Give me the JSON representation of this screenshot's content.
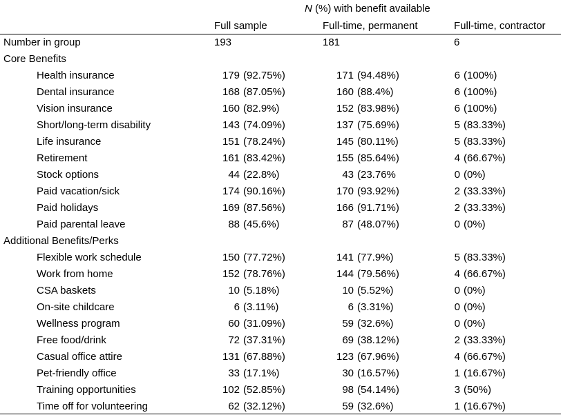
{
  "header": {
    "super_n": "N",
    "super_rest": " (%) with benefit available",
    "columns": [
      "Full sample",
      "Full-time, permanent",
      "Full-time, contractor"
    ]
  },
  "group_row": {
    "label": "Number in group",
    "full": "193",
    "perm": "181",
    "contr": "6"
  },
  "sections": [
    {
      "title": "Core Benefits",
      "rows": [
        {
          "label": "Health insurance",
          "full": [
            "179",
            "(92.75%)"
          ],
          "perm": [
            "171",
            "(94.48%)"
          ],
          "contr": [
            "6",
            "(100%)"
          ]
        },
        {
          "label": "Dental insurance",
          "full": [
            "168",
            "(87.05%)"
          ],
          "perm": [
            "160",
            "(88.4%)"
          ],
          "contr": [
            "6",
            "(100%)"
          ]
        },
        {
          "label": "Vision insurance",
          "full": [
            "160",
            "(82.9%)"
          ],
          "perm": [
            "152",
            "(83.98%)"
          ],
          "contr": [
            "6",
            "(100%)"
          ]
        },
        {
          "label": "Short/long-term disability",
          "full": [
            "143",
            "(74.09%)"
          ],
          "perm": [
            "137",
            "(75.69%)"
          ],
          "contr": [
            "5",
            "(83.33%)"
          ]
        },
        {
          "label": "Life insurance",
          "full": [
            "151",
            "(78.24%)"
          ],
          "perm": [
            "145",
            "(80.11%)"
          ],
          "contr": [
            "5",
            "(83.33%)"
          ]
        },
        {
          "label": "Retirement",
          "full": [
            "161",
            "(83.42%)"
          ],
          "perm": [
            "155",
            "(85.64%)"
          ],
          "contr": [
            "4",
            "(66.67%)"
          ]
        },
        {
          "label": "Stock options",
          "full": [
            "44",
            "(22.8%)"
          ],
          "perm": [
            "43",
            "(23.76%"
          ],
          "contr": [
            "0",
            "(0%)"
          ]
        },
        {
          "label": "Paid vacation/sick",
          "full": [
            "174",
            "(90.16%)"
          ],
          "perm": [
            "170",
            "(93.92%)"
          ],
          "contr": [
            "2",
            "(33.33%)"
          ]
        },
        {
          "label": "Paid holidays",
          "full": [
            "169",
            "(87.56%)"
          ],
          "perm": [
            "166",
            "(91.71%)"
          ],
          "contr": [
            "2",
            "(33.33%)"
          ]
        },
        {
          "label": "Paid parental leave",
          "full": [
            "88",
            "(45.6%)"
          ],
          "perm": [
            "87",
            "(48.07%)"
          ],
          "contr": [
            "0",
            "(0%)"
          ]
        }
      ]
    },
    {
      "title": "Additional Benefits/Perks",
      "rows": [
        {
          "label": "Flexible work schedule",
          "full": [
            "150",
            "(77.72%)"
          ],
          "perm": [
            "141",
            "(77.9%)"
          ],
          "contr": [
            "5",
            "(83.33%)"
          ]
        },
        {
          "label": "Work from home",
          "full": [
            "152",
            "(78.76%)"
          ],
          "perm": [
            "144",
            "(79.56%)"
          ],
          "contr": [
            "4",
            "(66.67%)"
          ]
        },
        {
          "label": "CSA baskets",
          "full": [
            "10",
            "(5.18%)"
          ],
          "perm": [
            "10",
            "(5.52%)"
          ],
          "contr": [
            "0",
            "(0%)"
          ]
        },
        {
          "label": "On-site childcare",
          "full": [
            "6",
            "(3.11%)"
          ],
          "perm": [
            "6",
            "(3.31%)"
          ],
          "contr": [
            "0",
            "(0%)"
          ]
        },
        {
          "label": "Wellness program",
          "full": [
            "60",
            "(31.09%)"
          ],
          "perm": [
            "59",
            "(32.6%)"
          ],
          "contr": [
            "0",
            "(0%)"
          ]
        },
        {
          "label": "Free food/drink",
          "full": [
            "72",
            "(37.31%)"
          ],
          "perm": [
            "69",
            "(38.12%)"
          ],
          "contr": [
            "2",
            "(33.33%)"
          ]
        },
        {
          "label": "Casual office attire",
          "full": [
            "131",
            "(67.88%)"
          ],
          "perm": [
            "123",
            "(67.96%)"
          ],
          "contr": [
            "4",
            "(66.67%)"
          ]
        },
        {
          "label": "Pet-friendly office",
          "full": [
            "33",
            "(17.1%)"
          ],
          "perm": [
            "30",
            "(16.57%)"
          ],
          "contr": [
            "1",
            "(16.67%)"
          ]
        },
        {
          "label": "Training opportunities",
          "full": [
            "102",
            "(52.85%)"
          ],
          "perm": [
            "98",
            "(54.14%)"
          ],
          "contr": [
            "3",
            "(50%)"
          ]
        },
        {
          "label": "Time off for volunteering",
          "full": [
            "62",
            "(32.12%)"
          ],
          "perm": [
            "59",
            "(32.6%)"
          ],
          "contr": [
            "1",
            "(16.67%)"
          ]
        }
      ]
    }
  ]
}
